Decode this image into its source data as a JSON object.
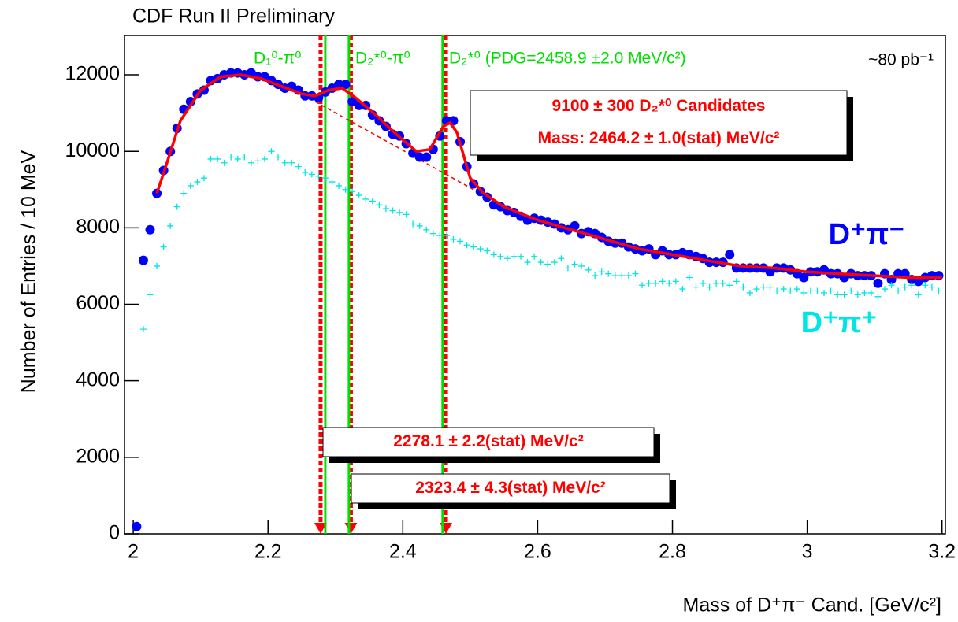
{
  "chart_data": {
    "type": "scatter",
    "title": "CDF Run II Preliminary",
    "xlabel": "Mass of D⁺π⁻ Cand. [GeV/c²]",
    "ylabel": "Number of Entries / 10 MeV",
    "luminosity": "~80 pb⁻¹",
    "xlim": [
      1.987,
      3.205
    ],
    "ylim": [
      0,
      13030
    ],
    "xticks": [
      2,
      2.2,
      2.4,
      2.6,
      2.8,
      3,
      3.2
    ],
    "yticks": [
      0,
      2000,
      4000,
      6000,
      8000,
      10000,
      12000
    ],
    "x": [
      2.005,
      2.015,
      2.025,
      2.035,
      2.045,
      2.055,
      2.065,
      2.075,
      2.085,
      2.095,
      2.105,
      2.115,
      2.125,
      2.135,
      2.145,
      2.155,
      2.165,
      2.175,
      2.185,
      2.195,
      2.205,
      2.215,
      2.225,
      2.235,
      2.245,
      2.255,
      2.265,
      2.275,
      2.285,
      2.295,
      2.305,
      2.315,
      2.325,
      2.335,
      2.345,
      2.355,
      2.365,
      2.375,
      2.385,
      2.395,
      2.405,
      2.415,
      2.425,
      2.435,
      2.445,
      2.455,
      2.465,
      2.475,
      2.485,
      2.495,
      2.505,
      2.515,
      2.525,
      2.535,
      2.545,
      2.555,
      2.565,
      2.575,
      2.585,
      2.595,
      2.605,
      2.615,
      2.625,
      2.635,
      2.645,
      2.655,
      2.665,
      2.675,
      2.685,
      2.695,
      2.705,
      2.715,
      2.725,
      2.735,
      2.745,
      2.755,
      2.765,
      2.775,
      2.785,
      2.795,
      2.805,
      2.815,
      2.825,
      2.835,
      2.845,
      2.855,
      2.865,
      2.875,
      2.885,
      2.895,
      2.905,
      2.915,
      2.925,
      2.935,
      2.945,
      2.955,
      2.965,
      2.975,
      2.985,
      2.995,
      3.005,
      3.015,
      3.025,
      3.035,
      3.045,
      3.055,
      3.065,
      3.075,
      3.085,
      3.095,
      3.105,
      3.115,
      3.125,
      3.135,
      3.145,
      3.155,
      3.165,
      3.175,
      3.185,
      3.195
    ],
    "series": [
      {
        "name": "D⁺π⁻",
        "color": "#0000ff",
        "marker": "circle",
        "values": [
          190,
          7150,
          7950,
          8900,
          9500,
          10000,
          10600,
          11100,
          11300,
          11500,
          11600,
          11850,
          11900,
          12000,
          12050,
          12050,
          12000,
          12050,
          11950,
          11950,
          11850,
          11750,
          11650,
          11700,
          11600,
          11450,
          11450,
          11400,
          11550,
          11650,
          11750,
          11750,
          11300,
          11200,
          11200,
          10950,
          10800,
          10650,
          10450,
          10400,
          10200,
          9950,
          9850,
          9850,
          10050,
          10400,
          10800,
          10800,
          10250,
          9600,
          9150,
          8950,
          8800,
          8600,
          8550,
          8450,
          8400,
          8300,
          8200,
          8250,
          8200,
          8150,
          8100,
          8000,
          7950,
          8050,
          7850,
          7900,
          7850,
          7750,
          7650,
          7600,
          7600,
          7500,
          7450,
          7400,
          7450,
          7300,
          7400,
          7300,
          7300,
          7350,
          7300,
          7250,
          7200,
          7100,
          7100,
          7100,
          7300,
          6950,
          6950,
          6950,
          6950,
          6950,
          6850,
          6950,
          6950,
          6900,
          6800,
          6700,
          6850,
          6850,
          6900,
          6800,
          6800,
          6700,
          6800,
          6750,
          6750,
          6750,
          6550,
          6800,
          6650,
          6800,
          6800,
          6650,
          6600,
          6700,
          6750,
          6750
        ]
      },
      {
        "name": "D⁺π⁺",
        "color": "#00e5e5",
        "marker": "plus",
        "values": [
          null,
          5350,
          6250,
          7000,
          7500,
          8050,
          8550,
          8900,
          9100,
          9200,
          9300,
          9800,
          9800,
          9700,
          9850,
          9800,
          9850,
          9700,
          9750,
          9800,
          10000,
          9850,
          9700,
          9700,
          9600,
          9450,
          9400,
          9350,
          9300,
          9200,
          9100,
          9000,
          8950,
          8850,
          8750,
          8700,
          8600,
          8500,
          8450,
          8400,
          8350,
          8100,
          8050,
          7950,
          7850,
          7800,
          7800,
          7700,
          7650,
          7550,
          7500,
          7450,
          7400,
          7300,
          7250,
          7200,
          7250,
          7250,
          7100,
          7250,
          7100,
          7050,
          7100,
          7200,
          6950,
          7050,
          7000,
          6900,
          6750,
          6850,
          6800,
          6750,
          6750,
          6750,
          6800,
          6500,
          6550,
          6550,
          6600,
          6550,
          6600,
          6400,
          6700,
          6450,
          6550,
          6450,
          6550,
          6550,
          6500,
          6600,
          6450,
          6300,
          6400,
          6450,
          6450,
          6350,
          6400,
          6350,
          6400,
          6300,
          6350,
          6350,
          6300,
          6350,
          6250,
          6250,
          6350,
          6250,
          6300,
          6300,
          6200,
          6400,
          6500,
          6350,
          6450,
          6500,
          6250,
          6500,
          6450,
          6350
        ]
      }
    ],
    "fit": {
      "color": "#ff0000",
      "x": [
        2.035,
        2.05,
        2.07,
        2.1,
        2.13,
        2.16,
        2.19,
        2.22,
        2.25,
        2.27,
        2.29,
        2.31,
        2.33,
        2.36,
        2.39,
        2.42,
        2.44,
        2.46,
        2.47,
        2.48,
        2.5,
        2.52,
        2.55,
        2.6,
        2.65,
        2.7,
        2.75,
        2.8,
        2.85,
        2.9,
        2.95,
        3.0,
        3.05,
        3.1,
        3.15,
        3.2
      ],
      "values": [
        8900,
        9700,
        10800,
        11600,
        11950,
        12000,
        11900,
        11700,
        11500,
        11450,
        11600,
        11650,
        11400,
        10950,
        10450,
        10000,
        10050,
        10650,
        10750,
        10500,
        9300,
        8900,
        8550,
        8200,
        7950,
        7700,
        7450,
        7300,
        7150,
        7000,
        6950,
        6850,
        6800,
        6750,
        6700,
        6700
      ]
    },
    "background": {
      "color": "#ff0000",
      "x": [
        2.27,
        2.515
      ],
      "values": [
        11300,
        8900
      ]
    },
    "fitted_lines": {
      "color": "#ff0000",
      "x": [
        2.278,
        2.323,
        2.464
      ]
    },
    "pdg_lines": {
      "color": "#00e000",
      "x": [
        2.285,
        2.32,
        2.459
      ]
    },
    "line_labels": [
      "D₁⁰-π⁰",
      "D₂*⁰-π⁰",
      "D₂*⁰ (PDG=2458.9  ±2.0 MeV/c²)"
    ],
    "boxes": [
      {
        "lines": [
          "9100 ± 300 D₂*⁰ Candidates",
          "Mass: 2464.2 ± 1.0(stat) MeV/c²"
        ]
      },
      {
        "lines": [
          "2278.1 ± 2.2(stat) MeV/c²"
        ]
      },
      {
        "lines": [
          "2323.4 ± 4.3(stat) MeV/c²"
        ]
      }
    ]
  }
}
